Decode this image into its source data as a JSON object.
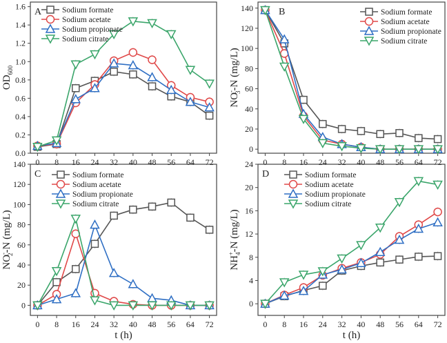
{
  "colors": {
    "Sodium formate": "#555555",
    "Sodium acetate": "#e04848",
    "Sodium propionate": "#2f6fc4",
    "Sodium citrate": "#3aa56a"
  },
  "markers": {
    "Sodium formate": "square",
    "Sodium acetate": "circle",
    "Sodium propionate": "triangle-up",
    "Sodium citrate": "triangle-down"
  },
  "chart_data": [
    {
      "type": "line",
      "panel": "A",
      "title": "",
      "xlabel": "",
      "ylabel": "OD600",
      "ylabel_main": "OD",
      "ylabel_sub": "600",
      "x": [
        0,
        8,
        16,
        24,
        32,
        40,
        48,
        56,
        64,
        72
      ],
      "xticks": [
        "0",
        "8",
        "16",
        "24",
        "32",
        "40",
        "48",
        "56",
        "64",
        "72"
      ],
      "xlim": [
        -3,
        75
      ],
      "ylim": [
        0,
        1.65
      ],
      "yticks": [
        "0.0",
        "0.2",
        "0.4",
        "0.6",
        "0.8",
        "1.0",
        "1.2",
        "1.4",
        "1.6"
      ],
      "ytick_values": [
        0,
        0.2,
        0.4,
        0.6,
        0.8,
        1.0,
        1.2,
        1.4,
        1.6
      ],
      "legend_position": "top-left",
      "series": [
        {
          "name": "Sodium formate",
          "values": [
            0.07,
            0.1,
            0.71,
            0.79,
            0.89,
            0.86,
            0.73,
            0.62,
            0.56,
            0.41
          ]
        },
        {
          "name": "Sodium acetate",
          "values": [
            0.08,
            0.1,
            0.55,
            0.75,
            1.01,
            1.1,
            1.02,
            0.74,
            0.61,
            0.56
          ]
        },
        {
          "name": "Sodium propionate",
          "values": [
            0.08,
            0.11,
            0.59,
            0.71,
            0.98,
            0.96,
            0.83,
            0.69,
            0.56,
            0.5
          ]
        },
        {
          "name": "Sodium citrate",
          "values": [
            0.07,
            0.14,
            0.97,
            1.08,
            1.3,
            1.44,
            1.42,
            1.3,
            0.91,
            0.76
          ]
        }
      ]
    },
    {
      "type": "line",
      "panel": "B",
      "title": "",
      "xlabel": "",
      "ylabel": "NO3--N (mg/L)",
      "ylabel_main": "NO",
      "ylabel_sub": "3",
      "ylabel_sup": "-",
      "ylabel_tail": "-N (mg/L)",
      "x": [
        0,
        8,
        16,
        24,
        32,
        40,
        48,
        56,
        64,
        72
      ],
      "xticks": [
        "0",
        "8",
        "16",
        "24",
        "32",
        "40",
        "48",
        "56",
        "64",
        "72"
      ],
      "xlim": [
        -3,
        75
      ],
      "ylim": [
        -4,
        146
      ],
      "yticks": [
        "0",
        "20",
        "40",
        "60",
        "80",
        "100",
        "120",
        "140"
      ],
      "ytick_values": [
        0,
        20,
        40,
        60,
        80,
        100,
        120,
        140
      ],
      "legend_position": "top-right",
      "series": [
        {
          "name": "Sodium formate",
          "values": [
            138,
            105,
            49,
            25,
            20,
            18,
            15,
            16,
            11,
            10
          ]
        },
        {
          "name": "Sodium acetate",
          "values": [
            138,
            95,
            33,
            9,
            5,
            2,
            0,
            0,
            0,
            0
          ]
        },
        {
          "name": "Sodium propionate",
          "values": [
            138,
            109,
            35,
            12,
            5,
            2,
            0,
            0,
            0,
            0
          ]
        },
        {
          "name": "Sodium citrate",
          "values": [
            138,
            82,
            30,
            6,
            3,
            1,
            0,
            0,
            0,
            0
          ]
        }
      ]
    },
    {
      "type": "line",
      "panel": "C",
      "title": "",
      "xlabel": "t (h)",
      "ylabel": "NO2--N (mg/L)",
      "ylabel_main": "NO",
      "ylabel_sub": "2",
      "ylabel_sup": "-",
      "ylabel_tail": "-N (mg/L)",
      "x": [
        0,
        8,
        16,
        24,
        32,
        40,
        48,
        56,
        64,
        72
      ],
      "xticks": [
        "0",
        "8",
        "16",
        "24",
        "32",
        "40",
        "48",
        "56",
        "64",
        "72"
      ],
      "xlim": [
        -3,
        75
      ],
      "ylim": [
        -10,
        140
      ],
      "yticks": [
        "0",
        "20",
        "40",
        "60",
        "80",
        "100",
        "120",
        "140"
      ],
      "ytick_values": [
        0,
        20,
        40,
        60,
        80,
        100,
        120,
        140
      ],
      "legend_position": "top-left",
      "series": [
        {
          "name": "Sodium formate",
          "values": [
            0,
            23,
            36,
            61,
            89,
            95,
            98,
            102,
            87,
            75
          ]
        },
        {
          "name": "Sodium acetate",
          "values": [
            0,
            11,
            71,
            12,
            4,
            1,
            0,
            0,
            0,
            0
          ]
        },
        {
          "name": "Sodium propionate",
          "values": [
            0,
            6,
            12,
            80,
            32,
            21,
            7,
            5,
            0,
            0
          ]
        },
        {
          "name": "Sodium citrate",
          "values": [
            0,
            34,
            86,
            5,
            0,
            0,
            0,
            0,
            0,
            0
          ]
        }
      ]
    },
    {
      "type": "line",
      "panel": "D",
      "title": "",
      "xlabel": "t (h)",
      "ylabel": "NH4+-N (mg/L)",
      "ylabel_main": "NH",
      "ylabel_sub": "4",
      "ylabel_sup": "+",
      "ylabel_tail": "-N (mg/L)",
      "x": [
        0,
        8,
        16,
        24,
        32,
        40,
        48,
        56,
        64,
        72
      ],
      "xticks": [
        "0",
        "8",
        "16",
        "24",
        "32",
        "40",
        "48",
        "56",
        "64",
        "72"
      ],
      "xlim": [
        -3,
        75
      ],
      "ylim": [
        -2,
        24
      ],
      "yticks": [
        "0",
        "4",
        "8",
        "12",
        "16",
        "20",
        "24"
      ],
      "ytick_values": [
        0,
        4,
        8,
        12,
        16,
        20,
        24
      ],
      "legend_position": "top-left",
      "series": [
        {
          "name": "Sodium formate",
          "values": [
            0,
            1.3,
            2.3,
            3.1,
            5.7,
            6.5,
            7.1,
            7.6,
            8.1,
            8.2
          ]
        },
        {
          "name": "Sodium acetate",
          "values": [
            0,
            1.5,
            2.8,
            4.9,
            6.1,
            7.1,
            8.5,
            11.6,
            13.6,
            15.8
          ]
        },
        {
          "name": "Sodium propionate",
          "values": [
            0,
            1.4,
            2.2,
            5.0,
            5.9,
            7.0,
            8.9,
            11.0,
            12.9,
            14.0
          ]
        },
        {
          "name": "Sodium citrate",
          "values": [
            0,
            3.7,
            5.0,
            5.6,
            7.8,
            10.1,
            13.1,
            17.5,
            21.1,
            20.5
          ]
        }
      ]
    }
  ]
}
